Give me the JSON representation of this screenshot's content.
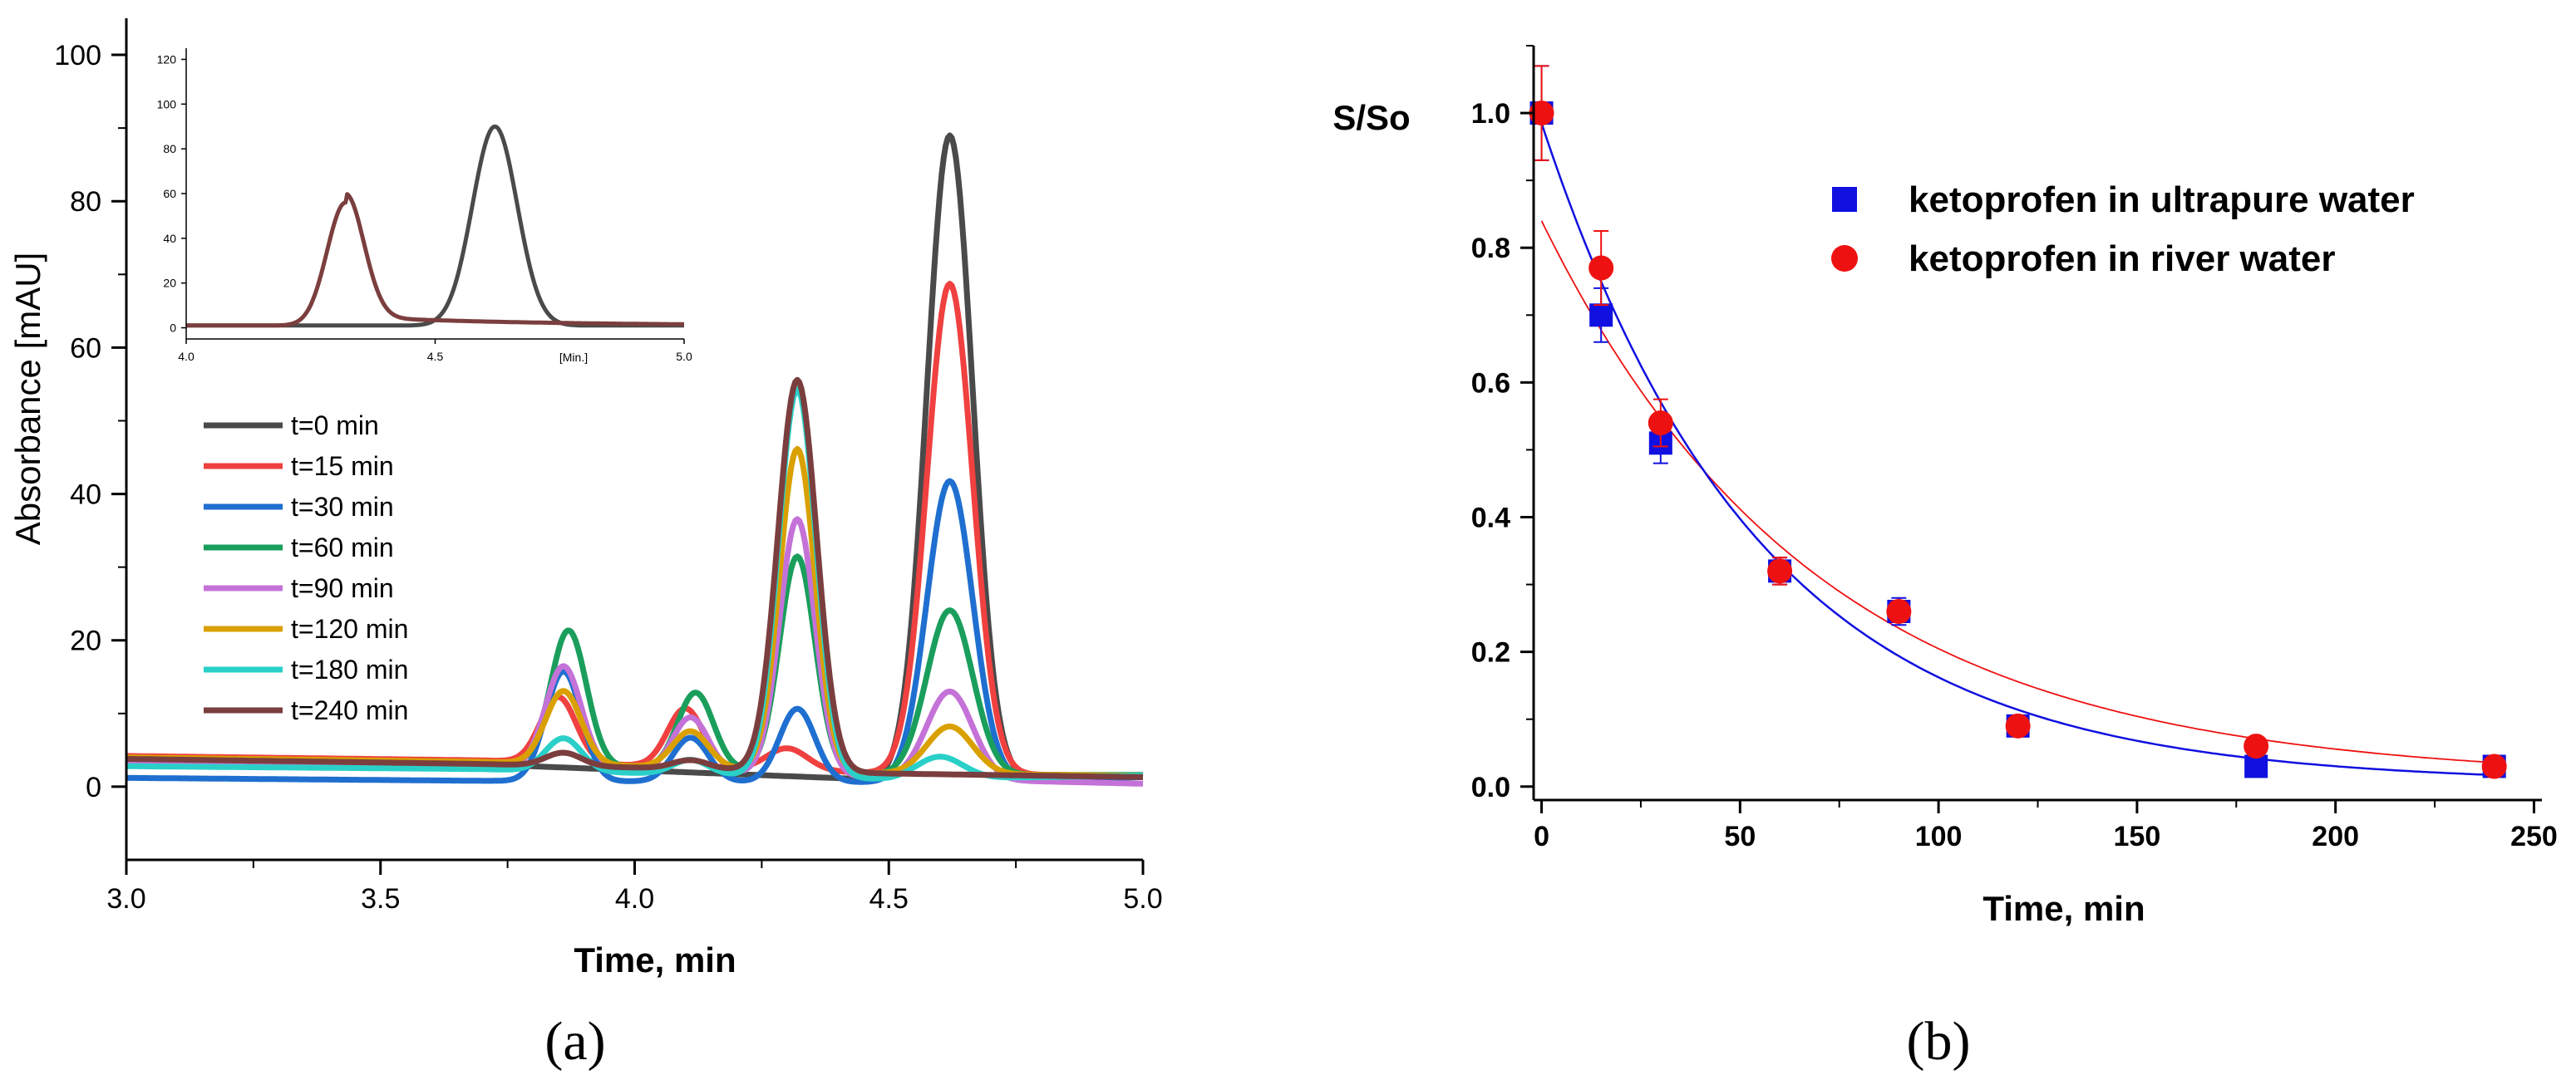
{
  "chart_data": [
    {
      "type": "line",
      "panel": "(a)",
      "xlabel": "Time, min",
      "ylabel": "Absorbance [mAU]",
      "xlim": [
        3.0,
        5.0
      ],
      "ylim": [
        -10,
        105
      ],
      "xticks": [
        3.0,
        3.5,
        4.0,
        4.5,
        5.0
      ],
      "xtick_labels": [
        "3.0",
        "3.5",
        "4.0",
        "4.5",
        "5.0"
      ],
      "yticks": [
        0,
        20,
        40,
        60,
        80,
        100
      ],
      "ytick_labels": [
        "0",
        "20",
        "40",
        "60",
        "80",
        "100"
      ],
      "legend_position": "center-left",
      "series": [
        {
          "name": "t=0 min",
          "color": "#4a4a4a",
          "baseline": [
            3.6,
            3.05,
            0.9,
            1.3
          ],
          "peaks": [
            [
              3.86,
              0,
              0.035
            ],
            [
              4.11,
              0,
              0.035
            ],
            [
              4.32,
              0,
              0.04
            ],
            [
              4.62,
              88,
              0.045
            ]
          ]
        },
        {
          "name": "t=15 min",
          "color": "#f04040",
          "baseline": [
            4.2,
            3.6,
            1.8,
            1.5
          ],
          "peaks": [
            [
              3.85,
              9,
              0.035
            ],
            [
              4.1,
              8,
              0.035
            ],
            [
              4.3,
              3,
              0.04
            ],
            [
              4.62,
              67,
              0.045
            ]
          ]
        },
        {
          "name": "t=30 min",
          "color": "#1f6fd0",
          "baseline": [
            1.2,
            0.8,
            0.6,
            1.3
          ],
          "peaks": [
            [
              3.86,
              15,
              0.035
            ],
            [
              4.11,
              6,
              0.035
            ],
            [
              4.32,
              10,
              0.035
            ],
            [
              4.62,
              41,
              0.045
            ]
          ]
        },
        {
          "name": "t=60 min",
          "color": "#1a9e5c",
          "baseline": [
            3.8,
            3.2,
            1.6,
            1.6
          ],
          "peaks": [
            [
              3.87,
              18.5,
              0.035
            ],
            [
              4.12,
              10.5,
              0.035
            ],
            [
              4.32,
              29.5,
              0.035
            ],
            [
              4.62,
              22.5,
              0.045
            ]
          ]
        },
        {
          "name": "t=90 min",
          "color": "#c472d8",
          "baseline": [
            3.4,
            2.8,
            1.2,
            0.4
          ],
          "peaks": [
            [
              3.86,
              14,
              0.035
            ],
            [
              4.11,
              7.5,
              0.035
            ],
            [
              4.32,
              35,
              0.035
            ],
            [
              4.62,
              12,
              0.045
            ]
          ]
        },
        {
          "name": "t=120 min",
          "color": "#d9a000",
          "baseline": [
            4.0,
            3.4,
            1.8,
            1.5
          ],
          "peaks": [
            [
              3.86,
              10,
              0.035
            ],
            [
              4.11,
              5,
              0.035
            ],
            [
              4.32,
              44,
              0.035
            ],
            [
              4.62,
              6.5,
              0.045
            ]
          ]
        },
        {
          "name": "t=180 min",
          "color": "#2ad0c8",
          "baseline": [
            2.8,
            2.4,
            1.0,
            1.5
          ],
          "peaks": [
            [
              3.86,
              4.5,
              0.035
            ],
            [
              4.11,
              2,
              0.035
            ],
            [
              4.32,
              53,
              0.037
            ],
            [
              4.6,
              3,
              0.045
            ]
          ]
        },
        {
          "name": "t=240 min",
          "color": "#7b3e3e",
          "baseline": [
            3.8,
            3.1,
            1.8,
            1.3
          ],
          "peaks": [
            [
              3.86,
              1.8,
              0.035
            ],
            [
              4.11,
              1.2,
              0.035
            ],
            [
              4.32,
              53.5,
              0.038
            ]
          ]
        }
      ],
      "inset": {
        "xlabel": "[Min.]",
        "xlim": [
          4.0,
          5.0
        ],
        "ylim": [
          -5,
          125
        ],
        "xticks": [
          4.0,
          4.5,
          5.0
        ],
        "xtick_labels": [
          "4.0",
          "4.5",
          "5.0"
        ],
        "yticks": [
          0,
          20,
          40,
          60,
          80,
          100,
          120
        ],
        "ytick_labels": [
          "0",
          "20",
          "40",
          "60",
          "80",
          "100",
          "120"
        ],
        "series": [
          {
            "name": "t=0 min",
            "color": "#4a4a4a",
            "baseline": [
              1,
              1,
              1,
              1
            ],
            "peaks": [
              [
                4.62,
                89,
                0.045
              ]
            ]
          },
          {
            "name": "t=240 min",
            "color": "#7b3e3e",
            "baseline": [
              1,
              1,
              1,
              1
            ],
            "peaks": [
              [
                4.32,
                55,
                0.037
              ]
            ],
            "tail": 4
          }
        ]
      }
    },
    {
      "type": "scatter",
      "panel": "(b)",
      "xlabel": "Time, min",
      "ylabel": "S/So",
      "xlim": [
        -2,
        252
      ],
      "ylim": [
        -0.02,
        1.1
      ],
      "xticks": [
        0,
        50,
        100,
        150,
        200,
        250
      ],
      "xtick_labels": [
        "0",
        "50",
        "100",
        "150",
        "200",
        "250"
      ],
      "yticks": [
        0.0,
        0.2,
        0.4,
        0.6,
        0.8,
        1.0
      ],
      "ytick_labels": [
        "0.0",
        "0.2",
        "0.4",
        "0.6",
        "0.8",
        "1.0"
      ],
      "legend_position": "top-right",
      "series": [
        {
          "name": "ketoprofen in ultrapure water",
          "marker": "square",
          "color": "#1010e0",
          "x": [
            0,
            15,
            30,
            60,
            90,
            120,
            180,
            240
          ],
          "y": [
            1.0,
            0.7,
            0.51,
            0.32,
            0.26,
            0.09,
            0.03,
            0.03
          ],
          "yerr": [
            0.07,
            0.04,
            0.03,
            0.02,
            0.02,
            0.01,
            0.01,
            0.01
          ],
          "fit": {
            "a": 0.98,
            "k": 0.0183,
            "c": 0.005
          }
        },
        {
          "name": "ketoprofen in river water",
          "marker": "circle",
          "color": "#ee1111",
          "x": [
            0,
            15,
            30,
            60,
            90,
            120,
            180,
            240
          ],
          "y": [
            1.0,
            0.77,
            0.54,
            0.32,
            0.26,
            0.09,
            0.06,
            0.03
          ],
          "yerr": [
            0.07,
            0.055,
            0.035,
            0.02,
            0.015,
            0.01,
            0.01,
            0.01
          ],
          "fit": {
            "a": 0.83,
            "k": 0.0145,
            "c": 0.01
          }
        }
      ]
    }
  ]
}
